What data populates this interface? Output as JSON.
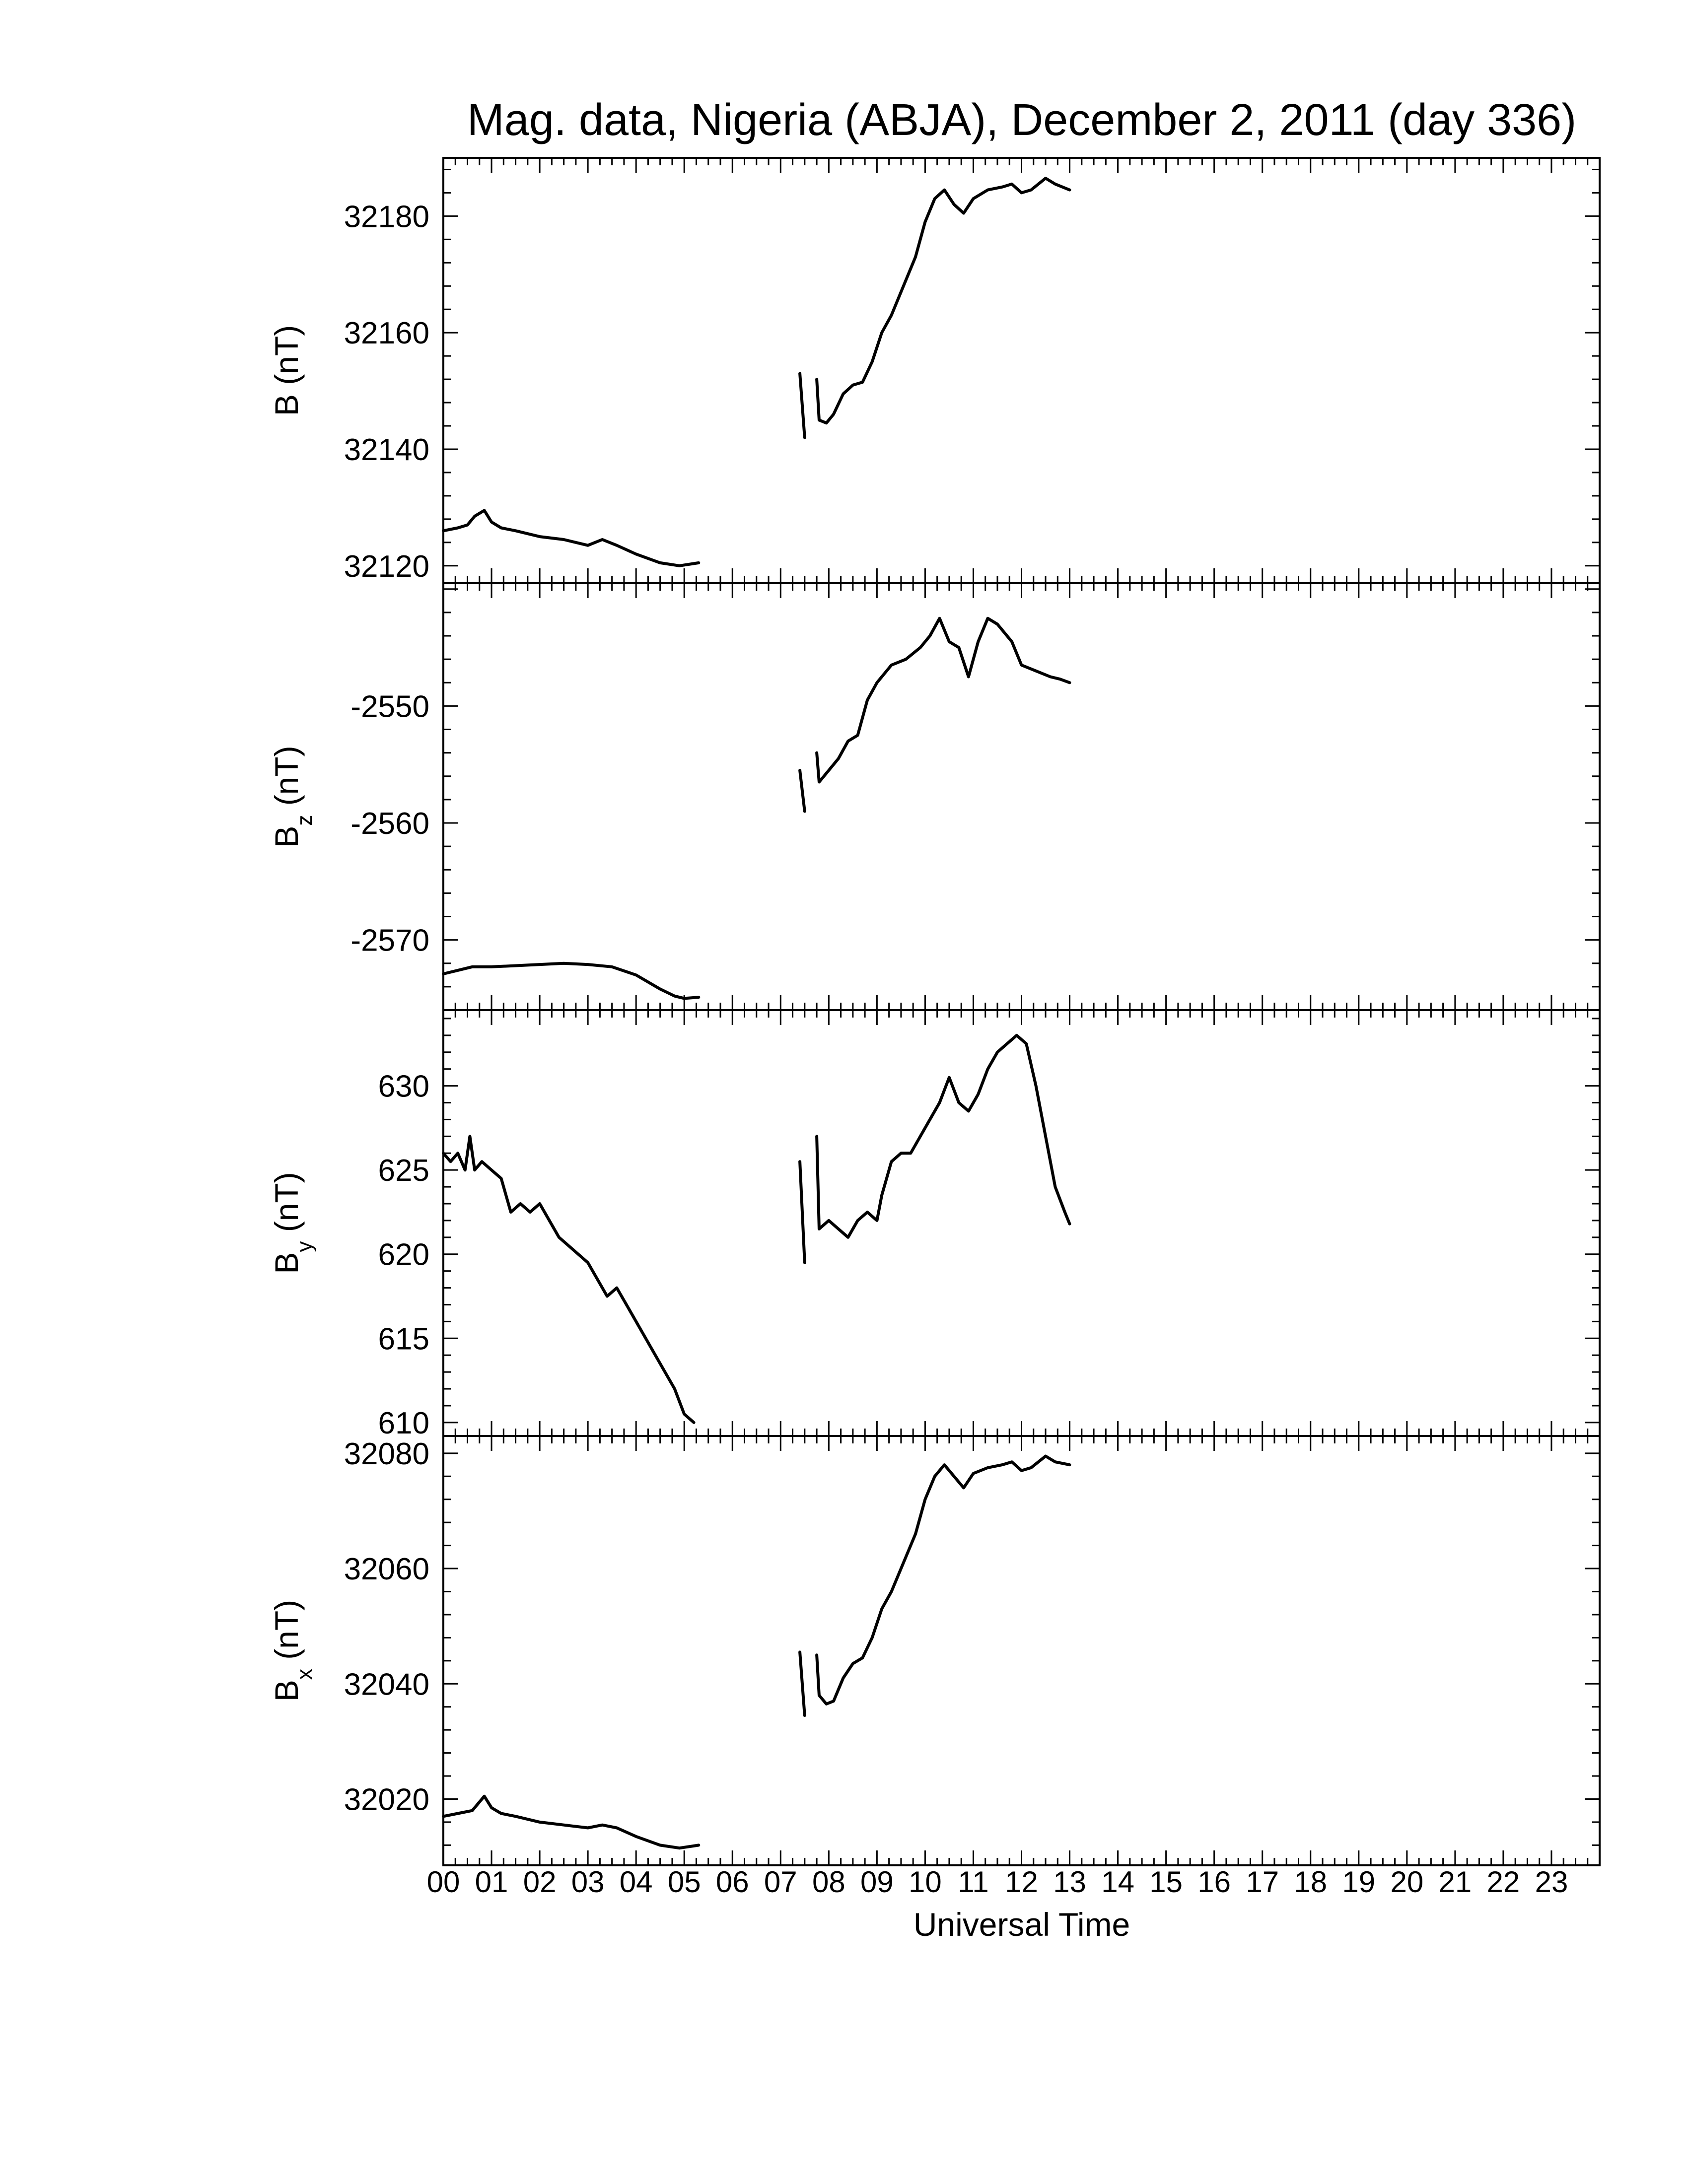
{
  "chart_data": {
    "type": "line",
    "title": "Mag. data, Nigeria (ABJA), December 2, 2011 (day 336)",
    "xlabel": "Universal Time",
    "xlim": [
      0,
      24
    ],
    "x_tick_labels": [
      "00",
      "01",
      "02",
      "03",
      "04",
      "05",
      "06",
      "07",
      "08",
      "09",
      "10",
      "11",
      "12",
      "13",
      "14",
      "15",
      "16",
      "17",
      "18",
      "19",
      "20",
      "21",
      "22",
      "23"
    ],
    "panels": [
      {
        "name": "B",
        "ylabel": "B (nT)",
        "ylabel_base": "B",
        "ylabel_sub": "",
        "ylabel_unit": "(nT)",
        "ylim": [
          32117,
          32190
        ],
        "yticks": [
          32120,
          32140,
          32160,
          32180
        ],
        "y_tick_labels": [
          "32120",
          "32140",
          "32160",
          "32180"
        ],
        "segments": [
          [
            [
              0.0,
              32126
            ],
            [
              0.3,
              32126.5
            ],
            [
              0.5,
              32127
            ],
            [
              0.65,
              32128.5
            ],
            [
              0.85,
              32129.5
            ],
            [
              1.0,
              32127.5
            ],
            [
              1.2,
              32126.5
            ],
            [
              1.5,
              32126
            ],
            [
              2.0,
              32125
            ],
            [
              2.5,
              32124.5
            ],
            [
              3.0,
              32123.5
            ],
            [
              3.3,
              32124.5
            ],
            [
              3.6,
              32123.5
            ],
            [
              4.0,
              32122
            ],
            [
              4.5,
              32120.5
            ],
            [
              4.9,
              32120
            ],
            [
              5.3,
              32120.5
            ]
          ],
          [
            [
              7.4,
              32153
            ],
            [
              7.5,
              32142
            ]
          ],
          [
            [
              7.75,
              32152
            ],
            [
              7.8,
              32145
            ],
            [
              7.95,
              32144.5
            ],
            [
              8.1,
              32146
            ],
            [
              8.3,
              32149.5
            ],
            [
              8.5,
              32151
            ],
            [
              8.7,
              32151.5
            ],
            [
              8.9,
              32155
            ],
            [
              9.1,
              32160
            ],
            [
              9.3,
              32163
            ],
            [
              9.5,
              32167
            ],
            [
              9.8,
              32173
            ],
            [
              10.0,
              32179
            ],
            [
              10.2,
              32183
            ],
            [
              10.4,
              32184.5
            ],
            [
              10.6,
              32182
            ],
            [
              10.8,
              32180.5
            ],
            [
              11.0,
              32183
            ],
            [
              11.3,
              32184.5
            ],
            [
              11.6,
              32185
            ],
            [
              11.8,
              32185.5
            ],
            [
              12.0,
              32184
            ],
            [
              12.2,
              32184.5
            ],
            [
              12.5,
              32186.5
            ],
            [
              12.7,
              32185.5
            ],
            [
              13.0,
              32184.5
            ]
          ]
        ]
      },
      {
        "name": "Bz",
        "ylabel": "Bz (nT)",
        "ylabel_base": "B",
        "ylabel_sub": "z",
        "ylabel_unit": "(nT)",
        "ylim": [
          -2576,
          -2539.5
        ],
        "yticks": [
          -2570,
          -2560,
          -2550
        ],
        "y_tick_labels": [
          "-2570",
          "-2560",
          "-2550"
        ],
        "segments": [
          [
            [
              0.0,
              -2572.9
            ],
            [
              0.3,
              -2572.6
            ],
            [
              0.6,
              -2572.3
            ],
            [
              1.0,
              -2572.3
            ],
            [
              1.5,
              -2572.2
            ],
            [
              2.0,
              -2572.1
            ],
            [
              2.5,
              -2572.0
            ],
            [
              3.0,
              -2572.1
            ],
            [
              3.5,
              -2572.3
            ],
            [
              4.0,
              -2573.0
            ],
            [
              4.5,
              -2574.2
            ],
            [
              4.8,
              -2574.8
            ],
            [
              5.0,
              -2575.0
            ],
            [
              5.3,
              -2574.9
            ]
          ],
          [
            [
              7.4,
              -2555.5
            ],
            [
              7.5,
              -2559
            ]
          ],
          [
            [
              7.75,
              -2554
            ],
            [
              7.8,
              -2556.5
            ],
            [
              8.0,
              -2555.5
            ],
            [
              8.2,
              -2554.5
            ],
            [
              8.4,
              -2553
            ],
            [
              8.6,
              -2552.5
            ],
            [
              8.8,
              -2549.5
            ],
            [
              9.0,
              -2548
            ],
            [
              9.3,
              -2546.5
            ],
            [
              9.6,
              -2546
            ],
            [
              9.9,
              -2545
            ],
            [
              10.1,
              -2544
            ],
            [
              10.3,
              -2542.5
            ],
            [
              10.5,
              -2544.5
            ],
            [
              10.7,
              -2545
            ],
            [
              10.9,
              -2547.5
            ],
            [
              11.1,
              -2544.5
            ],
            [
              11.3,
              -2542.5
            ],
            [
              11.5,
              -2543
            ],
            [
              11.8,
              -2544.5
            ],
            [
              12.0,
              -2546.5
            ],
            [
              12.3,
              -2547
            ],
            [
              12.6,
              -2547.5
            ],
            [
              12.8,
              -2547.7
            ],
            [
              13.0,
              -2548
            ]
          ]
        ]
      },
      {
        "name": "By",
        "ylabel": "By (nT)",
        "ylabel_base": "B",
        "ylabel_sub": "y",
        "ylabel_unit": "(nT)",
        "ylim": [
          609.2,
          634.5
        ],
        "yticks": [
          610,
          615,
          620,
          625,
          630
        ],
        "y_tick_labels": [
          "610",
          "615",
          "620",
          "625",
          "630"
        ],
        "segments": [
          [
            [
              0.0,
              626
            ],
            [
              0.15,
              625.5
            ],
            [
              0.3,
              626
            ],
            [
              0.45,
              625
            ],
            [
              0.55,
              627
            ],
            [
              0.65,
              625
            ],
            [
              0.8,
              625.5
            ],
            [
              1.0,
              625
            ],
            [
              1.2,
              624.5
            ],
            [
              1.4,
              622.5
            ],
            [
              1.6,
              623
            ],
            [
              1.8,
              622.5
            ],
            [
              2.0,
              623
            ],
            [
              2.2,
              622
            ],
            [
              2.4,
              621
            ],
            [
              2.6,
              620.5
            ],
            [
              2.8,
              620
            ],
            [
              3.0,
              619.5
            ],
            [
              3.2,
              618.5
            ],
            [
              3.4,
              617.5
            ],
            [
              3.6,
              618
            ],
            [
              3.8,
              617
            ],
            [
              4.0,
              616
            ],
            [
              4.2,
              615
            ],
            [
              4.4,
              614
            ],
            [
              4.6,
              613
            ],
            [
              4.8,
              612
            ],
            [
              5.0,
              610.5
            ],
            [
              5.2,
              610
            ]
          ],
          [
            [
              7.4,
              625.5
            ],
            [
              7.5,
              619.5
            ]
          ],
          [
            [
              7.75,
              627
            ],
            [
              7.8,
              621.5
            ],
            [
              8.0,
              622
            ],
            [
              8.2,
              621.5
            ],
            [
              8.4,
              621
            ],
            [
              8.6,
              622
            ],
            [
              8.8,
              622.5
            ],
            [
              9.0,
              622
            ],
            [
              9.1,
              623.5
            ],
            [
              9.3,
              625.5
            ],
            [
              9.5,
              626
            ],
            [
              9.7,
              626
            ],
            [
              9.9,
              627
            ],
            [
              10.1,
              628
            ],
            [
              10.3,
              629
            ],
            [
              10.5,
              630.5
            ],
            [
              10.7,
              629
            ],
            [
              10.9,
              628.5
            ],
            [
              11.1,
              629.5
            ],
            [
              11.3,
              631
            ],
            [
              11.5,
              632
            ],
            [
              11.7,
              632.5
            ],
            [
              11.9,
              633
            ],
            [
              12.1,
              632.5
            ],
            [
              12.3,
              630
            ],
            [
              12.5,
              627
            ],
            [
              12.7,
              624
            ],
            [
              12.9,
              622.5
            ],
            [
              13.0,
              621.8
            ]
          ]
        ]
      },
      {
        "name": "Bx",
        "ylabel": "Bx (nT)",
        "ylabel_base": "B",
        "ylabel_sub": "x",
        "ylabel_unit": "(nT)",
        "ylim": [
          32008.5,
          32083
        ],
        "yticks": [
          32020,
          32040,
          32060,
          32080
        ],
        "y_tick_labels": [
          "32020",
          "32040",
          "32060",
          "32080"
        ],
        "segments": [
          [
            [
              0.0,
              32017
            ],
            [
              0.3,
              32017.5
            ],
            [
              0.6,
              32018
            ],
            [
              0.85,
              32020.5
            ],
            [
              1.0,
              32018.5
            ],
            [
              1.2,
              32017.5
            ],
            [
              1.5,
              32017
            ],
            [
              2.0,
              32016
            ],
            [
              2.5,
              32015.5
            ],
            [
              3.0,
              32015
            ],
            [
              3.3,
              32015.5
            ],
            [
              3.6,
              32015
            ],
            [
              4.0,
              32013.5
            ],
            [
              4.5,
              32012
            ],
            [
              4.9,
              32011.5
            ],
            [
              5.3,
              32012
            ]
          ],
          [
            [
              7.4,
              32045.5
            ],
            [
              7.5,
              32034.5
            ]
          ],
          [
            [
              7.75,
              32045
            ],
            [
              7.8,
              32038
            ],
            [
              7.95,
              32036.5
            ],
            [
              8.1,
              32037
            ],
            [
              8.3,
              32041
            ],
            [
              8.5,
              32043.5
            ],
            [
              8.7,
              32044.5
            ],
            [
              8.9,
              32048
            ],
            [
              9.1,
              32053
            ],
            [
              9.3,
              32056
            ],
            [
              9.5,
              32060
            ],
            [
              9.8,
              32066
            ],
            [
              10.0,
              32072
            ],
            [
              10.2,
              32076
            ],
            [
              10.4,
              32078
            ],
            [
              10.6,
              32076
            ],
            [
              10.8,
              32074
            ],
            [
              11.0,
              32076.5
            ],
            [
              11.3,
              32077.5
            ],
            [
              11.6,
              32078
            ],
            [
              11.8,
              32078.5
            ],
            [
              12.0,
              32077
            ],
            [
              12.2,
              32077.5
            ],
            [
              12.5,
              32079.5
            ],
            [
              12.7,
              32078.5
            ],
            [
              13.0,
              32078
            ]
          ]
        ]
      }
    ]
  }
}
